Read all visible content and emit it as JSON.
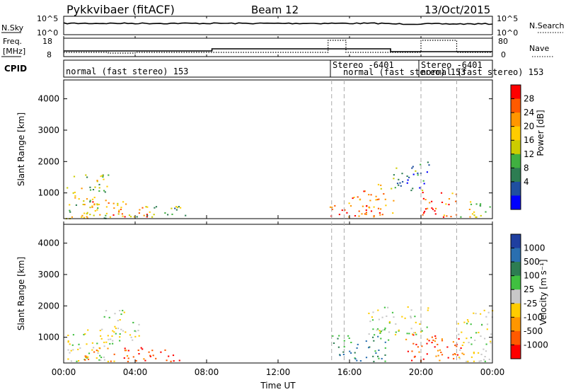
{
  "header": {
    "radar": "Pykkvibaer (fitACF)",
    "beam": "Beam 12",
    "date": "13/Oct/2015"
  },
  "noise_panel": {
    "left_label": "N.Sky",
    "left_ticks": [
      "10^5",
      "10^0"
    ],
    "right_label": "N.Search",
    "right_ticks": [
      "10^5",
      "10^0"
    ]
  },
  "freq_panel": {
    "left_label_line1": "Freq.",
    "left_label_line2": "[MHz]",
    "left_ticks": [
      "18",
      "8"
    ],
    "right_label": "Nave",
    "right_ticks": [
      "80",
      "0"
    ]
  },
  "cpid_panel": {
    "label": "CPID",
    "segments": [
      {
        "text": "normal (fast stereo) 153",
        "start_hour": 0
      },
      {
        "text": "Stereo -6401",
        "start_hour": 15.0
      },
      {
        "text": "normal (fast stereo) 153",
        "start_hour": 15.7
      },
      {
        "text": "Stereo -6401",
        "start_hour": 20.0
      },
      {
        "text": "normal (fast stereo) 153",
        "start_hour": 20.6
      }
    ]
  },
  "x_axis": {
    "ticks": [
      "00:00",
      "04:00",
      "08:00",
      "12:00",
      "16:00",
      "20:00",
      "00:00"
    ],
    "label": "Time UT"
  },
  "power_colorbar": {
    "title": "Power [dB]",
    "ticks": [
      "28",
      "24",
      "20",
      "16",
      "12",
      "8",
      "4"
    ],
    "colors": [
      "#ff0000",
      "#ff5a00",
      "#ff9600",
      "#ffcc00",
      "#cccc00",
      "#40b040",
      "#2d7d52",
      "#1f4fa0",
      "#0000ff"
    ]
  },
  "velocity_colorbar": {
    "title": "Velocity [m s⁻¹]",
    "ticks": [
      "1000",
      "500",
      "100",
      "25",
      "-25",
      "-100",
      "-500",
      "-1000"
    ],
    "colors": [
      "#1f3fa0",
      "#2a6fb0",
      "#2d7d52",
      "#40c040",
      "#c8c8c8",
      "#ffcc00",
      "#ff9600",
      "#ff5a00",
      "#ff0000"
    ]
  },
  "chart_data": [
    {
      "type": "heatmap",
      "title": "Pykkvibaer (fitACF)",
      "subtitle": "Beam 12",
      "xlabel": "Time UT",
      "ylabel": "Slant Range [km]",
      "x_range_hours": [
        0,
        24
      ],
      "ylim": [
        180,
        4600
      ],
      "yticks": [
        1000,
        2000,
        3000,
        4000
      ],
      "colorbar": "Power [dB]",
      "scatter_regions": [
        {
          "t0": 0.1,
          "t1": 2.5,
          "r0": 200,
          "r1": 1600,
          "value_db": 14
        },
        {
          "t0": 1.0,
          "t1": 3.5,
          "r0": 250,
          "r1": 900,
          "value_db": 22
        },
        {
          "t0": 3.0,
          "t1": 4.7,
          "r0": 250,
          "r1": 700,
          "value_db": 26
        },
        {
          "t0": 3.5,
          "t1": 6.8,
          "r0": 250,
          "r1": 650,
          "value_db": 12
        },
        {
          "t0": 14.8,
          "t1": 18.5,
          "r0": 250,
          "r1": 900,
          "value_db": 26
        },
        {
          "t0": 16.0,
          "t1": 17.9,
          "r0": 800,
          "r1": 1300,
          "value_db": 22
        },
        {
          "t0": 18.3,
          "t1": 20.5,
          "r0": 1100,
          "r1": 2000,
          "value_db": 8
        },
        {
          "t0": 20.0,
          "t1": 22.0,
          "r0": 250,
          "r1": 1100,
          "value_db": 24
        },
        {
          "t0": 22.0,
          "t1": 23.9,
          "r0": 250,
          "r1": 800,
          "value_db": 14
        }
      ]
    },
    {
      "type": "heatmap",
      "xlabel": "Time UT",
      "ylabel": "Slant Range [km]",
      "x_range_hours": [
        0,
        24
      ],
      "ylim": [
        180,
        4600
      ],
      "yticks": [
        1000,
        2000,
        3000,
        4000
      ],
      "colorbar": "Velocity [m s⁻¹]",
      "scatter_regions": [
        {
          "t0": 0.1,
          "t1": 3.0,
          "r0": 250,
          "r1": 1300,
          "value_ms": -10
        },
        {
          "t0": 1.0,
          "t1": 4.5,
          "r0": 250,
          "r1": 700,
          "value_ms": -200
        },
        {
          "t0": 2.0,
          "t1": 4.2,
          "r0": 900,
          "r1": 1900,
          "value_ms": 0
        },
        {
          "t0": 4.5,
          "t1": 6.8,
          "r0": 250,
          "r1": 650,
          "value_ms": -250
        },
        {
          "t0": 15.0,
          "t1": 18.2,
          "r0": 250,
          "r1": 1100,
          "value_ms": 200
        },
        {
          "t0": 17.0,
          "t1": 20.5,
          "r0": 1100,
          "r1": 2000,
          "value_ms": 0
        },
        {
          "t0": 19.0,
          "t1": 22.5,
          "r0": 250,
          "r1": 1100,
          "value_ms": -200
        },
        {
          "t0": 22.0,
          "t1": 24.0,
          "r0": 250,
          "r1": 1900,
          "value_ms": 0
        }
      ]
    }
  ]
}
